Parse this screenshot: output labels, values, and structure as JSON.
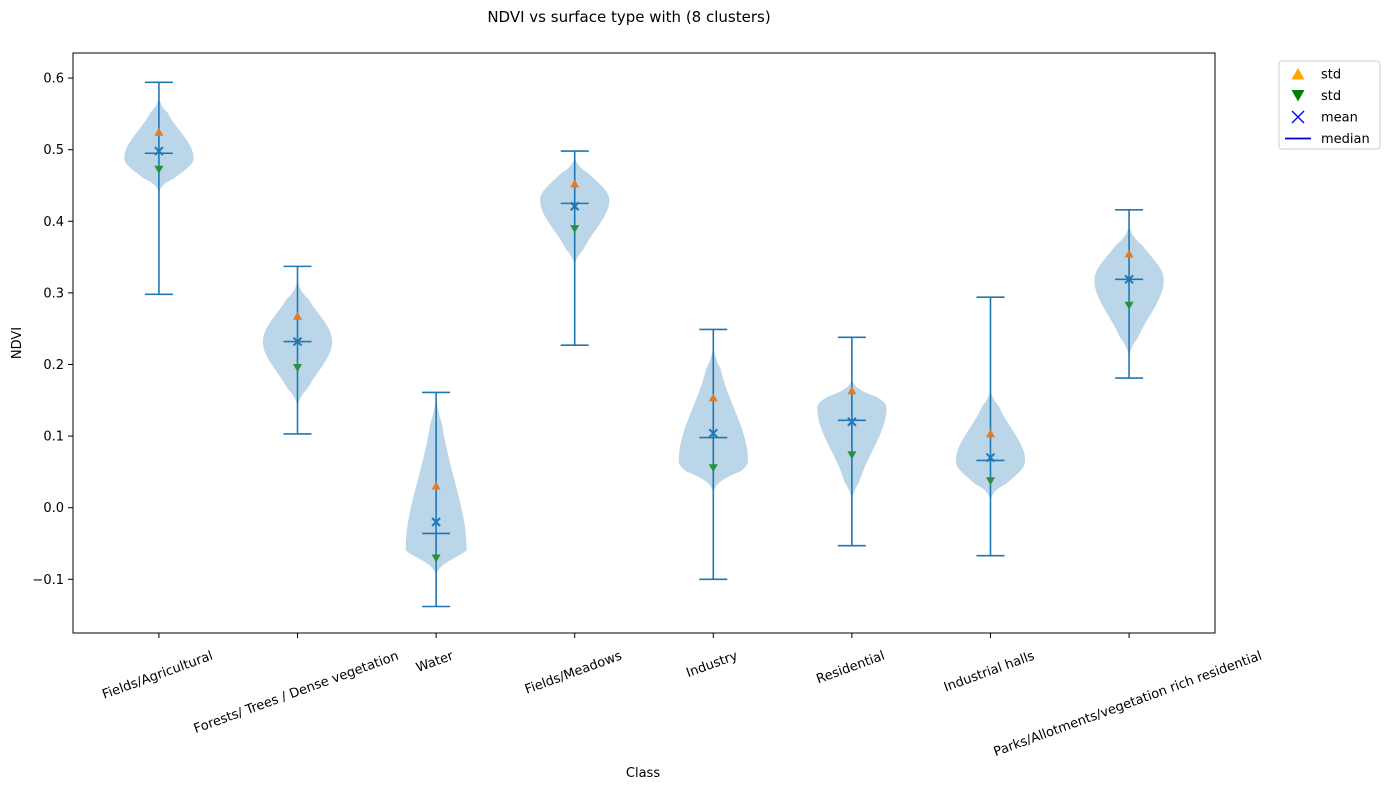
{
  "chart_data": {
    "type": "violin",
    "title": "NDVI vs surface type with (8 clusters)",
    "xlabel": "Class",
    "ylabel": "NDVI",
    "ylim": [
      -0.175,
      0.635
    ],
    "yticks": [
      -0.1,
      0.0,
      0.1,
      0.2,
      0.3,
      0.4,
      0.5,
      0.6
    ],
    "ytick_labels": [
      "−0.1",
      "0.0",
      "0.1",
      "0.2",
      "0.3",
      "0.4",
      "0.5",
      "0.6"
    ],
    "categories": [
      "Fields/Agricultural",
      "Forests/ Trees / Dense vegetation",
      "Water",
      "Fields/Meadows",
      "Industry",
      "Residential",
      "Industrial halls",
      "Parks/Allotments/vegetation rich residential"
    ],
    "stats": [
      {
        "min": 0.298,
        "max": 0.594,
        "median": 0.495,
        "mean": 0.498,
        "std_up": 0.525,
        "std_down": 0.472,
        "kde_lo": 0.44,
        "kde_hi": 0.572,
        "mode": 0.488,
        "halfwidth": 0.5
      },
      {
        "min": 0.103,
        "max": 0.337,
        "median": 0.232,
        "mean": 0.232,
        "std_up": 0.268,
        "std_down": 0.195,
        "kde_lo": 0.14,
        "kde_hi": 0.318,
        "mode": 0.232,
        "halfwidth": 0.5
      },
      {
        "min": -0.138,
        "max": 0.161,
        "median": -0.036,
        "mean": -0.02,
        "std_up": 0.031,
        "std_down": -0.071,
        "kde_lo": -0.097,
        "kde_hi": 0.155,
        "mode": -0.06,
        "halfwidth": 0.44
      },
      {
        "min": 0.227,
        "max": 0.498,
        "median": 0.425,
        "mean": 0.421,
        "std_up": 0.453,
        "std_down": 0.389,
        "kde_lo": 0.338,
        "kde_hi": 0.49,
        "mode": 0.43,
        "halfwidth": 0.5
      },
      {
        "min": -0.1,
        "max": 0.249,
        "median": 0.098,
        "mean": 0.104,
        "std_up": 0.154,
        "std_down": 0.055,
        "kde_lo": 0.02,
        "kde_hi": 0.225,
        "mode": 0.065,
        "halfwidth": 0.5
      },
      {
        "min": -0.053,
        "max": 0.238,
        "median": 0.122,
        "mean": 0.12,
        "std_up": 0.164,
        "std_down": 0.073,
        "kde_lo": 0.01,
        "kde_hi": 0.18,
        "mode": 0.14,
        "halfwidth": 0.5
      },
      {
        "min": -0.067,
        "max": 0.294,
        "median": 0.066,
        "mean": 0.07,
        "std_up": 0.104,
        "std_down": 0.037,
        "kde_lo": 0.01,
        "kde_hi": 0.165,
        "mode": 0.065,
        "halfwidth": 0.5
      },
      {
        "min": 0.181,
        "max": 0.416,
        "median": 0.319,
        "mean": 0.319,
        "std_up": 0.355,
        "std_down": 0.282,
        "kde_lo": 0.21,
        "kde_hi": 0.395,
        "mode": 0.318,
        "halfwidth": 0.5
      }
    ],
    "legend": {
      "placement": "outside-top-right",
      "entries": [
        {
          "label": "std",
          "marker": "triangle-up",
          "color": "#ffa500"
        },
        {
          "label": "std",
          "marker": "triangle-down",
          "color": "#008000"
        },
        {
          "label": "mean",
          "marker": "x",
          "color": "#0000ff"
        },
        {
          "label": "median",
          "marker": "line",
          "color": "#0000cd"
        }
      ]
    },
    "colors": {
      "violin_fill": "#1f77b4",
      "lines": "#1f77b4",
      "std_up_marker": "#e07b2a",
      "std_down_marker": "#2a9040",
      "mean_marker": "#1f77b4"
    },
    "grid": false
  }
}
